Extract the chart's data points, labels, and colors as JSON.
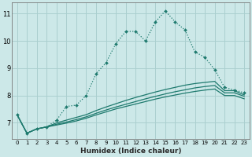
{
  "xlabel": "Humidex (Indice chaleur)",
  "bg_color": "#cce8e8",
  "grid_color": "#aacfcf",
  "line_color": "#1e7a6e",
  "x": [
    0,
    1,
    2,
    3,
    4,
    5,
    6,
    7,
    8,
    9,
    10,
    11,
    12,
    13,
    14,
    15,
    16,
    17,
    18,
    19,
    20,
    21,
    22,
    23
  ],
  "y_main": [
    7.3,
    6.62,
    6.78,
    6.85,
    7.1,
    7.6,
    7.65,
    8.0,
    8.8,
    9.2,
    9.9,
    10.35,
    10.35,
    10.0,
    10.7,
    11.1,
    10.7,
    10.4,
    9.6,
    9.4,
    8.95,
    8.3,
    8.2,
    8.1
  ],
  "y_c1": [
    7.3,
    6.62,
    6.78,
    6.85,
    7.0,
    7.1,
    7.2,
    7.3,
    7.45,
    7.58,
    7.7,
    7.82,
    7.93,
    8.03,
    8.13,
    8.22,
    8.3,
    8.38,
    8.44,
    8.48,
    8.52,
    8.18,
    8.18,
    8.02
  ],
  "y_c2": [
    7.3,
    6.62,
    6.78,
    6.85,
    6.95,
    7.03,
    7.12,
    7.22,
    7.35,
    7.47,
    7.58,
    7.68,
    7.78,
    7.88,
    7.97,
    8.06,
    8.14,
    8.21,
    8.28,
    8.33,
    8.37,
    8.1,
    8.1,
    7.97
  ],
  "y_c3": [
    7.3,
    6.62,
    6.78,
    6.85,
    6.92,
    6.99,
    7.07,
    7.17,
    7.29,
    7.4,
    7.51,
    7.6,
    7.69,
    7.78,
    7.87,
    7.95,
    8.02,
    8.09,
    8.15,
    8.2,
    8.24,
    8.0,
    8.0,
    7.88
  ],
  "ylim": [
    6.4,
    11.4
  ],
  "xlim": [
    -0.5,
    23.5
  ],
  "yticks": [
    7,
    8,
    9,
    10,
    11
  ]
}
